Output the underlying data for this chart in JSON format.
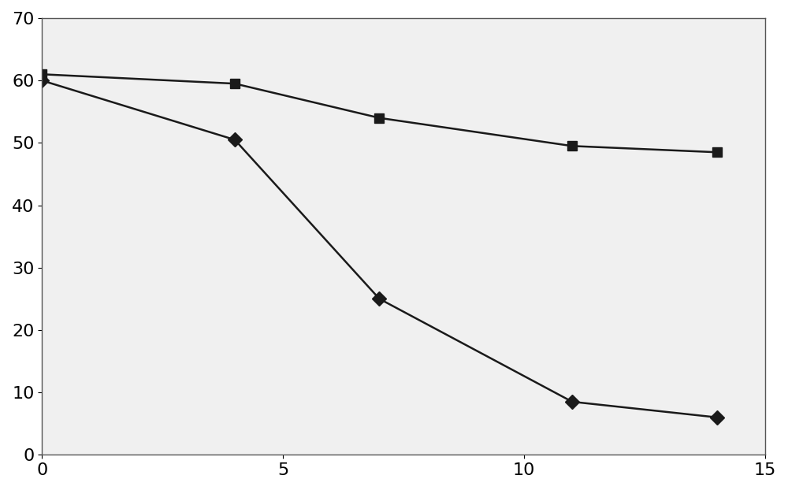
{
  "series": [
    {
      "x": [
        0,
        4,
        7,
        11,
        14
      ],
      "y": [
        61,
        59.5,
        54,
        49.5,
        48.5
      ],
      "marker": "s",
      "color": "#1a1a1a",
      "markersize": 9,
      "linewidth": 1.8
    },
    {
      "x": [
        0,
        4,
        7,
        11,
        14
      ],
      "y": [
        60,
        50.5,
        25,
        8.5,
        6
      ],
      "marker": "D",
      "color": "#1a1a1a",
      "markersize": 9,
      "linewidth": 1.8
    }
  ],
  "xlim": [
    0,
    15
  ],
  "ylim": [
    0,
    70
  ],
  "xticks": [
    0,
    5,
    10,
    15
  ],
  "yticks": [
    0,
    10,
    20,
    30,
    40,
    50,
    60,
    70
  ],
  "xlabel": "",
  "ylabel": "",
  "background_color": "#ffffff",
  "plot_bg_color": "#f0f0f0",
  "tick_fontsize": 16,
  "figure_width": 10.0,
  "figure_height": 6.22
}
